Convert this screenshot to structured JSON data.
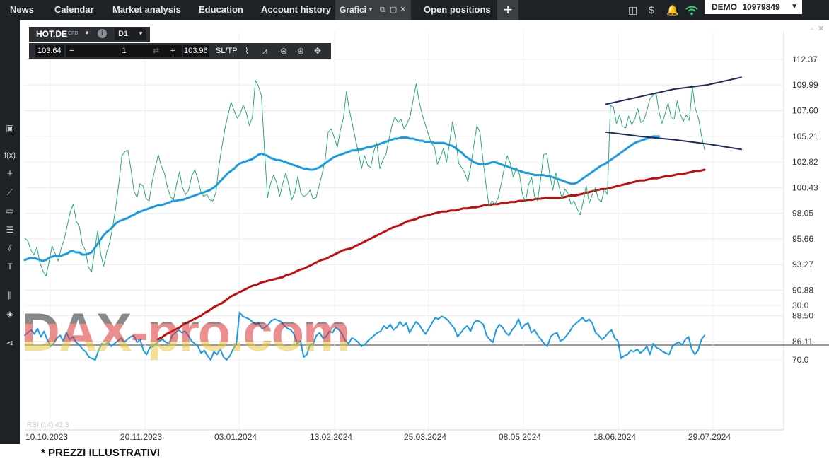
{
  "nav": {
    "items": [
      "News",
      "Calendar",
      "Market analysis",
      "Education",
      "Account history"
    ],
    "active_tab": "Grafici",
    "next_tab": "Open positions",
    "add_label": "+",
    "account_mode": "DEMO",
    "account_number": "10979849"
  },
  "chart_header": {
    "symbol": "HOT.DE",
    "instrument_type": "CFD",
    "timeframe": "D1",
    "sell_price": "103.64",
    "quantity": "1",
    "minus": "−",
    "plus": "+",
    "buy_price": "103.96",
    "sltp": "SL/TP"
  },
  "axes": {
    "price_ticks": [
      "112.37",
      "109.99",
      "107.60",
      "105.21",
      "102.82",
      "100.43",
      "98.05",
      "95.66",
      "93.27",
      "90.88",
      "88.50",
      "86.11"
    ],
    "rsi_ticks": [
      "70.0",
      "30.0"
    ],
    "date_ticks": [
      "10.10.2023",
      "20.11.2023",
      "03.01.2024",
      "13.02.2024",
      "25.03.2024",
      "08.05.2024",
      "18.06.2024",
      "29.07.2024"
    ]
  },
  "rsi_legend": "RSI (14) 42.3",
  "watermark": "DAX-pro.com",
  "footer_note": "* PREZZI ILLUSTRATIVI",
  "colors": {
    "price_line": "#2aa876",
    "ma_fast": "#1a9be8",
    "ma_slow": "#c40e0e",
    "trendline": "#1f2a60",
    "rsi": "#1a9be8"
  },
  "chart_data": {
    "type": "line",
    "y_range": [
      86.11,
      112.37
    ],
    "series": [
      {
        "values": [
          95.7,
          95.5,
          94.6,
          94.2,
          94.9,
          93.4,
          92.7,
          92.2,
          93.5,
          95.0,
          94.3,
          93.6,
          94.8,
          95.6,
          96.9,
          98.2,
          98.9,
          97.3,
          96.8,
          95.1,
          94.6,
          93.0,
          92.6,
          94.5,
          96.4,
          94.3,
          93.1,
          94.4,
          95.3,
          96.8,
          98.6,
          100.8,
          103.4,
          103.8,
          103.9,
          102.1,
          100.1,
          99.5,
          100.8,
          100.6,
          99.4,
          99.2,
          101.0,
          102.3,
          103.5,
          102.4,
          101.8,
          100.5,
          99.6,
          99.3,
          100.7,
          101.9,
          100.4,
          99.8,
          100.2,
          101.5,
          102.1,
          101.3,
          100.1,
          99.6,
          99.8,
          99.3,
          99.2,
          100.0,
          102.5,
          104.3,
          106.0,
          107.2,
          108.4,
          107.6,
          106.9,
          107.3,
          108.1,
          107.4,
          106.2,
          107.0,
          110.4,
          109.9,
          109.0,
          104.0,
          99.5,
          100.8,
          101.6,
          100.9,
          99.6,
          100.8,
          101.8,
          100.7,
          99.3,
          100.0,
          101.5,
          99.9,
          99.6,
          99.8,
          100.2,
          99.4,
          99.5,
          100.6,
          101.7,
          103.0,
          105.6,
          105.9,
          105.1,
          104.2,
          105.8,
          106.9,
          109.4,
          107.6,
          106.3,
          104.9,
          103.7,
          102.2,
          103.4,
          102.5,
          102.3,
          103.8,
          104.6,
          102.2,
          103.0,
          103.5,
          104.9,
          106.2,
          107.0,
          106.5,
          106.8,
          105.9,
          106.4,
          107.1,
          108.6,
          110.1,
          108.4,
          107.2,
          106.3,
          105.4,
          104.6,
          104.2,
          102.6,
          103.3,
          104.1,
          102.8,
          104.6,
          106.6,
          104.9,
          102.7,
          102.3,
          101.8,
          101.0,
          102.5,
          104.4,
          106.2,
          105.6,
          103.0,
          100.7,
          98.7,
          99.2,
          98.9,
          99.5,
          100.8,
          102.2,
          103.4,
          102.7,
          101.4,
          102.3,
          101.7,
          99.8,
          99.1,
          100.7,
          101.4,
          99.6,
          99.2,
          101.2,
          103.5,
          103.6,
          101.7,
          100.2,
          101.8,
          100.6,
          99.4,
          100.3,
          99.9,
          98.9,
          99.2,
          98.5,
          97.9,
          99.1,
          100.6,
          99.0,
          99.8,
          100.4,
          99.4,
          99.1,
          100.3,
          99.8,
          108.1,
          107.9,
          106.4,
          107.2,
          106.1,
          106.0,
          107.1,
          106.3,
          106.8,
          107.8,
          106.5,
          106.7,
          107.6,
          108.7,
          109.0,
          109.3,
          107.5,
          106.4,
          107.3,
          108.3,
          107.0,
          106.8,
          108.5,
          107.3,
          106.6,
          107.2,
          106.7,
          109.8,
          107.8,
          106.9,
          105.3,
          104.0
        ]
      },
      {
        "values": [
          93.7,
          93.8,
          93.9,
          93.9,
          93.8,
          93.7,
          93.6,
          93.7,
          93.9,
          94.0,
          94.1,
          94.1,
          94.1,
          94.2,
          94.3,
          94.5,
          94.5,
          94.4,
          94.4,
          94.2,
          94.2,
          94.3,
          94.4,
          94.8,
          95.2,
          95.6,
          96.0,
          96.3,
          96.5,
          96.8,
          97.1,
          97.3,
          97.4,
          97.5,
          97.6,
          97.8,
          97.9,
          98.1,
          98.2,
          98.3,
          98.4,
          98.5,
          98.6,
          98.7,
          98.8,
          98.8,
          98.9,
          99.0,
          99.1,
          99.2,
          99.2,
          99.3,
          99.3,
          99.4,
          99.5,
          99.6,
          99.7,
          99.8,
          99.9,
          100.0,
          100.1,
          100.2,
          100.4,
          100.6,
          100.9,
          101.2,
          101.5,
          101.8,
          102.0,
          102.2,
          102.5,
          102.7,
          102.8,
          102.9,
          103.0,
          103.1,
          103.3,
          103.5,
          103.6,
          103.5,
          103.4,
          103.2,
          103.1,
          103.0,
          103.0,
          102.9,
          102.8,
          102.7,
          102.6,
          102.5,
          102.4,
          102.3,
          102.2,
          102.2,
          102.1,
          102.1,
          102.2,
          102.3,
          102.5,
          102.7,
          102.9,
          103.1,
          103.3,
          103.4,
          103.5,
          103.6,
          103.7,
          103.8,
          103.9,
          103.9,
          104.0,
          104.0,
          104.1,
          104.2,
          104.2,
          104.3,
          104.4,
          104.5,
          104.6,
          104.7,
          104.8,
          104.9,
          105.0,
          105.0,
          105.1,
          105.1,
          105.1,
          105.0,
          105.0,
          104.9,
          104.8,
          104.8,
          104.7,
          104.7,
          104.7,
          104.6,
          104.6,
          104.6,
          104.6,
          104.5,
          104.4,
          104.3,
          104.1,
          103.9,
          103.7,
          103.4,
          103.2,
          103.0,
          102.8,
          102.7,
          102.6,
          102.6,
          102.6,
          102.7,
          102.8,
          102.8,
          102.7,
          102.6,
          102.5,
          102.4,
          102.3,
          102.2,
          102.1,
          102.0,
          101.9,
          101.8,
          101.8,
          101.7,
          101.6,
          101.6,
          101.6,
          101.6,
          101.5,
          101.5,
          101.4,
          101.3,
          101.2,
          101.1,
          101.0,
          100.9,
          100.8,
          100.8,
          100.9,
          101.1,
          101.3,
          101.5,
          101.7,
          101.9,
          102.1,
          102.3,
          102.5,
          102.6,
          102.8,
          103.0,
          103.2,
          103.4,
          103.6,
          103.8,
          104.0,
          104.2,
          104.4,
          104.6,
          104.7,
          104.8,
          104.9,
          105.0,
          105.1,
          105.2,
          105.2,
          105.2
        ]
      },
      {
        "values": [
          86.3,
          86.5,
          86.8,
          87.0,
          87.2,
          87.4,
          87.7,
          87.9,
          88.1,
          88.3,
          88.5,
          88.8,
          89.0,
          89.3,
          89.5,
          89.7,
          90.0,
          90.3,
          90.5,
          90.7,
          90.9,
          91.1,
          91.3,
          91.4,
          91.6,
          91.7,
          91.8,
          91.9,
          92.0,
          92.1,
          92.3,
          92.4,
          92.6,
          92.8,
          92.9,
          93.1,
          93.3,
          93.5,
          93.7,
          93.8,
          94.0,
          94.2,
          94.4,
          94.6,
          94.7,
          94.8,
          95.0,
          95.2,
          95.4,
          95.6,
          95.8,
          96.0,
          96.2,
          96.4,
          96.6,
          96.8,
          96.9,
          97.1,
          97.3,
          97.4,
          97.5,
          97.7,
          97.8,
          97.9,
          98.0,
          98.1,
          98.2,
          98.2,
          98.3,
          98.3,
          98.4,
          98.5,
          98.5,
          98.6,
          98.6,
          98.7,
          98.8,
          98.8,
          98.9,
          98.9,
          99.0,
          99.0,
          99.1,
          99.1,
          99.2,
          99.2,
          99.3,
          99.3,
          99.4,
          99.4,
          99.5,
          99.5,
          99.5,
          99.5,
          99.5,
          99.6,
          99.7,
          99.7,
          99.8,
          99.9,
          100.0,
          100.1,
          100.2,
          100.3,
          100.3,
          100.4,
          100.5,
          100.6,
          100.7,
          100.8,
          100.9,
          101.0,
          101.1,
          101.1,
          101.2,
          101.3,
          101.3,
          101.4,
          101.5,
          101.5,
          101.6,
          101.7,
          101.7,
          101.8,
          101.9,
          102.0,
          102.0,
          102.1
        ]
      },
      {
        "values": [
          52,
          50,
          48,
          51,
          47,
          53,
          49,
          55,
          60,
          58,
          54,
          52,
          56,
          50,
          55,
          53,
          57,
          59,
          62,
          64,
          68,
          69,
          70,
          63,
          58,
          59,
          57,
          60,
          58,
          56,
          54,
          57,
          55,
          53,
          52,
          57,
          55,
          63,
          66,
          61,
          60,
          58,
          56,
          55,
          57,
          58,
          52,
          50,
          48,
          50,
          49,
          52,
          56,
          58,
          60,
          65,
          63,
          67,
          70,
          64,
          66,
          62,
          68,
          70,
          67,
          62,
          58,
          35,
          38,
          39,
          40,
          42,
          44,
          43,
          47,
          46,
          44,
          41,
          40,
          41,
          42,
          45,
          47,
          48,
          51,
          58,
          56,
          68,
          66,
          59,
          58,
          52,
          50,
          54,
          53,
          49,
          50,
          46,
          48,
          51,
          56,
          58,
          54,
          55,
          57,
          60,
          59,
          56,
          54,
          52,
          50,
          49,
          45,
          47,
          44,
          48,
          46,
          42,
          45,
          43,
          50,
          46,
          42,
          44,
          48,
          51,
          47,
          43,
          39,
          40,
          38,
          39,
          41,
          44,
          47,
          53,
          50,
          47,
          45,
          49,
          43,
          41,
          42,
          44,
          52,
          55,
          57,
          48,
          44,
          46,
          50,
          52,
          48,
          45,
          40,
          47,
          44,
          43,
          50,
          48,
          52,
          55,
          58,
          60,
          53,
          51,
          50,
          56,
          55,
          52,
          49,
          45,
          43,
          41,
          39,
          42,
          40,
          43,
          50,
          52,
          55,
          53,
          50,
          48,
          54,
          56,
          69,
          67,
          66,
          63,
          64,
          62,
          65,
          63,
          60,
          66,
          58,
          61,
          62,
          64,
          65,
          66,
          60,
          58,
          57,
          59,
          55,
          53,
          62,
          66,
          63,
          55,
          52
        ]
      },
      {
        "values": [
          108.2,
          108.9,
          109.6,
          110.0,
          110.7
        ]
      },
      {
        "values": [
          105.6,
          105.2,
          104.9,
          104.5,
          104.0
        ]
      }
    ]
  }
}
